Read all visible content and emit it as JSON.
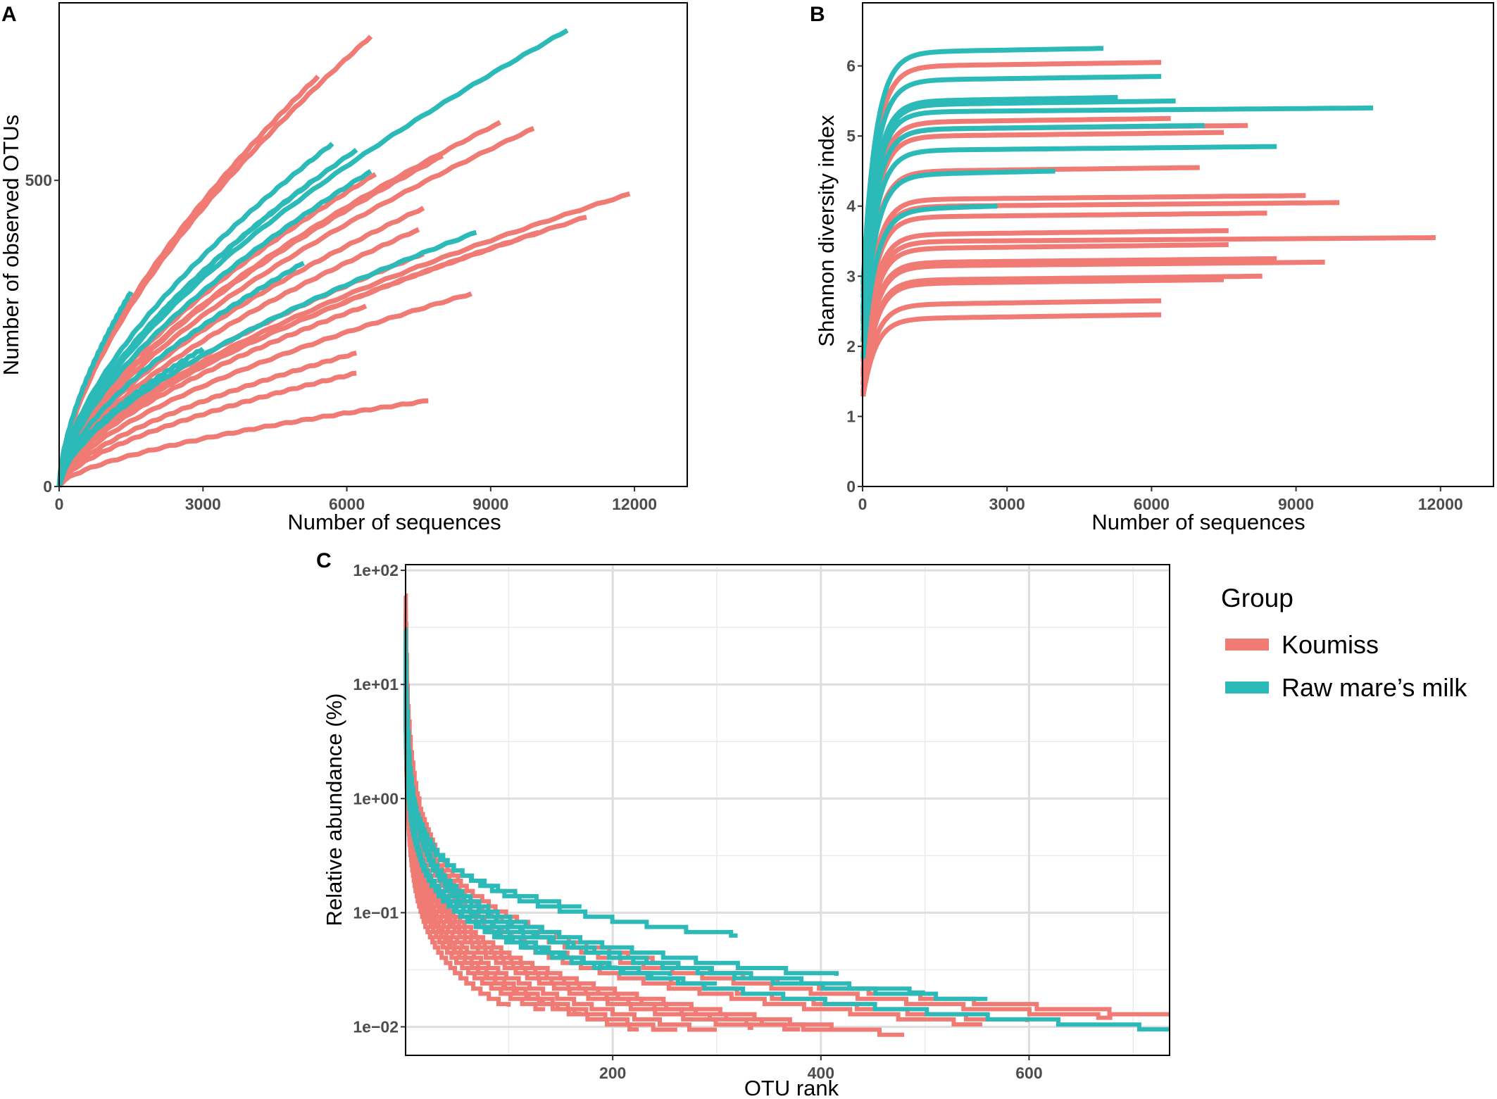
{
  "figure": {
    "legend": {
      "title": "Group",
      "entries": [
        {
          "label": "Koumiss",
          "color": "#F07A74"
        },
        {
          "label": "Raw mare’s milk",
          "color": "#2CBAB8"
        }
      ]
    }
  },
  "chart_data": [
    {
      "panel": "A",
      "type": "line",
      "title": "",
      "xlabel": "Number of sequences",
      "ylabel": "Number of observed OTUs",
      "xlim": [
        0,
        13100
      ],
      "ylim": [
        0,
        790
      ],
      "xticks": [
        0,
        3000,
        6000,
        9000,
        12000
      ],
      "xtick_labels": [
        "0",
        "3000",
        "6000",
        "9000",
        "12000"
      ],
      "yticks": [
        0,
        500
      ],
      "ytick_labels": [
        "0",
        "500"
      ],
      "grid": false,
      "series": [
        {
          "group": "Koumiss",
          "max_x": 6500,
          "final": 735
        },
        {
          "group": "Koumiss",
          "max_x": 5400,
          "final": 670
        },
        {
          "group": "Koumiss",
          "max_x": 9200,
          "final": 595
        },
        {
          "group": "Koumiss",
          "max_x": 9900,
          "final": 585
        },
        {
          "group": "Koumiss",
          "max_x": 8000,
          "final": 540
        },
        {
          "group": "Koumiss",
          "max_x": 6600,
          "final": 510
        },
        {
          "group": "Koumiss",
          "max_x": 7000,
          "final": 500
        },
        {
          "group": "Koumiss",
          "max_x": 7600,
          "final": 455
        },
        {
          "group": "Koumiss",
          "max_x": 7500,
          "final": 420
        },
        {
          "group": "Koumiss",
          "max_x": 11900,
          "final": 478
        },
        {
          "group": "Koumiss",
          "max_x": 11000,
          "final": 440
        },
        {
          "group": "Koumiss",
          "max_x": 10000,
          "final": 415
        },
        {
          "group": "Koumiss",
          "max_x": 7600,
          "final": 380
        },
        {
          "group": "Koumiss",
          "max_x": 8600,
          "final": 315
        },
        {
          "group": "Koumiss",
          "max_x": 6400,
          "final": 295
        },
        {
          "group": "Koumiss",
          "max_x": 6200,
          "final": 218
        },
        {
          "group": "Koumiss",
          "max_x": 6200,
          "final": 185
        },
        {
          "group": "Koumiss",
          "max_x": 7700,
          "final": 140
        },
        {
          "group": "Raw mare’s milk",
          "max_x": 10600,
          "final": 745
        },
        {
          "group": "Raw mare’s milk",
          "max_x": 5700,
          "final": 560
        },
        {
          "group": "Raw mare’s milk",
          "max_x": 6200,
          "final": 550
        },
        {
          "group": "Raw mare’s milk",
          "max_x": 6500,
          "final": 515
        },
        {
          "group": "Raw mare’s milk",
          "max_x": 5300,
          "final": 500
        },
        {
          "group": "Raw mare’s milk",
          "max_x": 8700,
          "final": 415
        },
        {
          "group": "Raw mare’s milk",
          "max_x": 5100,
          "final": 365
        },
        {
          "group": "Raw mare’s milk",
          "max_x": 1500,
          "final": 318
        },
        {
          "group": "Raw mare’s milk",
          "max_x": 3000,
          "final": 225
        }
      ]
    },
    {
      "panel": "B",
      "type": "line",
      "title": "",
      "xlabel": "Number of sequences",
      "ylabel": "Shannon diversity index",
      "xlim": [
        0,
        13100
      ],
      "ylim": [
        0,
        6.9
      ],
      "xticks": [
        0,
        3000,
        6000,
        9000,
        12000
      ],
      "xtick_labels": [
        "0",
        "3000",
        "6000",
        "9000",
        "12000"
      ],
      "yticks": [
        0,
        1,
        2,
        3,
        4,
        5,
        6
      ],
      "ytick_labels": [
        "0",
        "1",
        "2",
        "3",
        "4",
        "5",
        "6"
      ],
      "grid": false,
      "series": [
        {
          "group": "Koumiss",
          "max_x": 6200,
          "final": 6.05
        },
        {
          "group": "Koumiss",
          "max_x": 6400,
          "final": 5.25
        },
        {
          "group": "Koumiss",
          "max_x": 8000,
          "final": 5.15
        },
        {
          "group": "Koumiss",
          "max_x": 7500,
          "final": 5.05
        },
        {
          "group": "Koumiss",
          "max_x": 7000,
          "final": 4.55
        },
        {
          "group": "Koumiss",
          "max_x": 9200,
          "final": 4.15
        },
        {
          "group": "Koumiss",
          "max_x": 9900,
          "final": 4.05
        },
        {
          "group": "Koumiss",
          "max_x": 8400,
          "final": 3.9
        },
        {
          "group": "Koumiss",
          "max_x": 7600,
          "final": 3.65
        },
        {
          "group": "Koumiss",
          "max_x": 11900,
          "final": 3.55
        },
        {
          "group": "Koumiss",
          "max_x": 7600,
          "final": 3.45
        },
        {
          "group": "Koumiss",
          "max_x": 8600,
          "final": 3.25
        },
        {
          "group": "Koumiss",
          "max_x": 9600,
          "final": 3.2
        },
        {
          "group": "Koumiss",
          "max_x": 8300,
          "final": 3.0
        },
        {
          "group": "Koumiss",
          "max_x": 7500,
          "final": 2.95
        },
        {
          "group": "Koumiss",
          "max_x": 6200,
          "final": 2.65
        },
        {
          "group": "Koumiss",
          "max_x": 6200,
          "final": 2.45
        },
        {
          "group": "Raw mare’s milk",
          "max_x": 5000,
          "final": 6.25
        },
        {
          "group": "Raw mare’s milk",
          "max_x": 6200,
          "final": 5.85
        },
        {
          "group": "Raw mare’s milk",
          "max_x": 6500,
          "final": 5.5
        },
        {
          "group": "Raw mare’s milk",
          "max_x": 5300,
          "final": 5.55
        },
        {
          "group": "Raw mare’s milk",
          "max_x": 10600,
          "final": 5.4
        },
        {
          "group": "Raw mare’s milk",
          "max_x": 7100,
          "final": 5.15
        },
        {
          "group": "Raw mare’s milk",
          "max_x": 8600,
          "final": 4.85
        },
        {
          "group": "Raw mare’s milk",
          "max_x": 4000,
          "final": 4.5
        },
        {
          "group": "Raw mare’s milk",
          "max_x": 2800,
          "final": 4.0
        }
      ]
    },
    {
      "panel": "C",
      "type": "line",
      "title": "",
      "xlabel": "OTU rank",
      "ylabel": "Relative abundance (%)",
      "xlim": [
        1,
        735
      ],
      "ylim_log10": [
        -2.25,
        2.05
      ],
      "xticks": [
        200,
        400,
        600
      ],
      "xtick_labels": [
        "200",
        "400",
        "600"
      ],
      "yticks_log10": [
        2,
        1,
        0,
        -1,
        -2
      ],
      "ytick_labels": [
        "1e+02",
        "1e+01",
        "1e+00",
        "1e−01",
        "1e−02"
      ],
      "grid": true,
      "series": [
        {
          "group": "Koumiss",
          "max_rank": 735,
          "top_abundance": 60,
          "min_abundance": 0.0125
        },
        {
          "group": "Koumiss",
          "max_rank": 680,
          "top_abundance": 45,
          "min_abundance": 0.012
        },
        {
          "group": "Koumiss",
          "max_rank": 598,
          "top_abundance": 40,
          "min_abundance": 0.011
        },
        {
          "group": "Koumiss",
          "max_rank": 555,
          "top_abundance": 35,
          "min_abundance": 0.0105
        },
        {
          "group": "Koumiss",
          "max_rank": 480,
          "top_abundance": 30,
          "min_abundance": 0.0085
        },
        {
          "group": "Koumiss",
          "max_rank": 420,
          "top_abundance": 25,
          "min_abundance": 0.009
        },
        {
          "group": "Koumiss",
          "max_rank": 380,
          "top_abundance": 20,
          "min_abundance": 0.0095
        },
        {
          "group": "Koumiss",
          "max_rank": 335,
          "top_abundance": 18,
          "min_abundance": 0.0098
        },
        {
          "group": "Koumiss",
          "max_rank": 300,
          "top_abundance": 16,
          "min_abundance": 0.009
        },
        {
          "group": "Koumiss",
          "max_rank": 262,
          "top_abundance": 14,
          "min_abundance": 0.009
        },
        {
          "group": "Koumiss",
          "max_rank": 225,
          "top_abundance": 12,
          "min_abundance": 0.0095
        },
        {
          "group": "Koumiss",
          "max_rank": 170,
          "top_abundance": 10,
          "min_abundance": 0.013
        },
        {
          "group": "Koumiss",
          "max_rank": 135,
          "top_abundance": 8,
          "min_abundance": 0.014
        },
        {
          "group": "Koumiss",
          "max_rank": 100,
          "top_abundance": 6,
          "min_abundance": 0.015
        },
        {
          "group": "Raw mare’s milk",
          "max_rank": 735,
          "top_abundance": 30,
          "min_abundance": 0.0095
        },
        {
          "group": "Raw mare’s milk",
          "max_rank": 560,
          "top_abundance": 22,
          "min_abundance": 0.017
        },
        {
          "group": "Raw mare’s milk",
          "max_rank": 500,
          "top_abundance": 18,
          "min_abundance": 0.02
        },
        {
          "group": "Raw mare’s milk",
          "max_rank": 415,
          "top_abundance": 15,
          "min_abundance": 0.028
        },
        {
          "group": "Raw mare’s milk",
          "max_rank": 320,
          "top_abundance": 12,
          "min_abundance": 0.063
        },
        {
          "group": "Raw mare’s milk",
          "max_rank": 300,
          "top_abundance": 10,
          "min_abundance": 0.023
        },
        {
          "group": "Raw mare’s milk",
          "max_rank": 255,
          "top_abundance": 9,
          "min_abundance": 0.028
        },
        {
          "group": "Raw mare’s milk",
          "max_rank": 205,
          "top_abundance": 8,
          "min_abundance": 0.033
        },
        {
          "group": "Raw mare’s milk",
          "max_rank": 170,
          "top_abundance": 7,
          "min_abundance": 0.11
        },
        {
          "group": "Raw mare’s milk",
          "max_rank": 125,
          "top_abundance": 6,
          "min_abundance": 0.06
        }
      ]
    }
  ]
}
